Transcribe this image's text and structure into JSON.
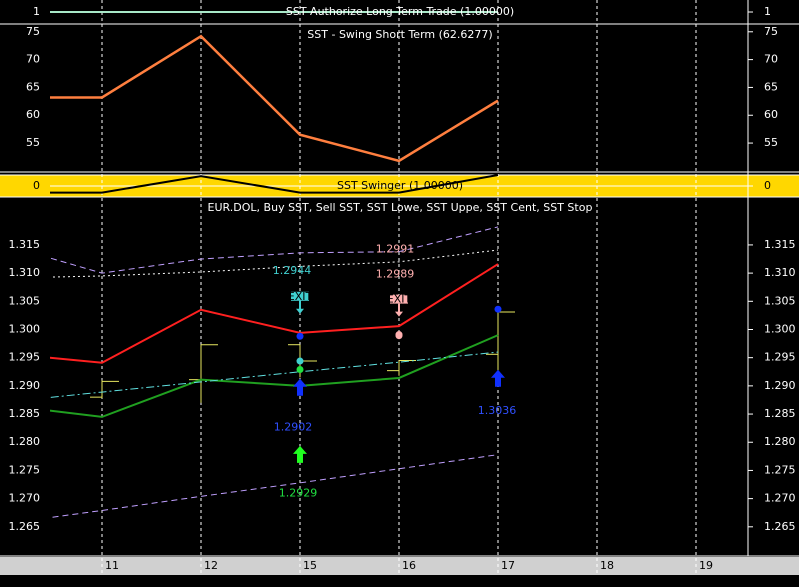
{
  "chart_data": [
    {
      "type": "line",
      "title": "SST Authorize Long Term Trade (1.00000)",
      "ylim": [
        0,
        2
      ],
      "yticks": [
        1
      ],
      "series": [
        {
          "color": "#a8e8c8",
          "style": "solid",
          "values": [
            1,
            1,
            1,
            1,
            1,
            1,
            null,
            null
          ]
        }
      ]
    },
    {
      "type": "line",
      "title": "SST - Swing Short Term (62.6277)",
      "ylim": [
        49.8,
        76.4
      ],
      "yticks": [
        75,
        70,
        65,
        60,
        55
      ],
      "series": [
        {
          "color": "#ff7f3f",
          "style": "solid",
          "values": [
            63.2,
            63.2,
            74.2,
            56.5,
            51.8,
            62.6277,
            null,
            null
          ]
        }
      ]
    },
    {
      "type": "line",
      "title": "SST Swinger (1.00000)",
      "background": "#ffd700",
      "ylim": [
        -1,
        1
      ],
      "yticks": [
        0
      ],
      "series": [
        {
          "color": "#000000",
          "style": "solid",
          "values": [
            -0.6,
            -0.6,
            0.9,
            -0.6,
            -0.6,
            1,
            null,
            null
          ]
        }
      ]
    },
    {
      "type": "ohlc",
      "title": "EUR.DOL, Buy SST, Sell SST, SST Lowe, SST Uppe, SST Cent, SST Stop",
      "categories": [
        null,
        "11",
        "12",
        "15",
        "16",
        "17",
        "18",
        "19"
      ],
      "ylim": [
        1.26,
        1.3235
      ],
      "yticks": [
        {
          "value": 1.315,
          "label": "1.315"
        },
        {
          "value": 1.31,
          "label": "1.310"
        },
        {
          "value": 1.305,
          "label": "1.305"
        },
        {
          "value": 1.3,
          "label": "1.300"
        },
        {
          "value": 1.295,
          "label": "1.295"
        },
        {
          "value": 1.29,
          "label": "1.290"
        },
        {
          "value": 1.285,
          "label": "1.285"
        },
        {
          "value": 1.28,
          "label": "1.280"
        },
        {
          "value": 1.275,
          "label": "1.275"
        },
        {
          "value": 1.27,
          "label": "1.270"
        },
        {
          "value": 1.265,
          "label": "1.265"
        }
      ],
      "ohlc": {
        "color": "#e8e860",
        "open": [
          null,
          1.288,
          1.2911,
          1.2973,
          1.2927,
          1.2956,
          null,
          null
        ],
        "high": [
          null,
          1.291,
          1.2973,
          1.2973,
          1.2945,
          1.3031,
          null,
          null
        ],
        "low": [
          null,
          1.2878,
          1.287,
          1.2915,
          1.2918,
          1.2902,
          null,
          null
        ],
        "close": [
          null,
          1.2908,
          1.2973,
          1.2944,
          1.2945,
          1.3031,
          null,
          null
        ]
      },
      "series": [
        {
          "color": "#ff2020",
          "style": "solid",
          "values": [
            1.2958,
            1.2941,
            1.3035,
            1.2994,
            1.3006,
            1.3116,
            null,
            null
          ]
        },
        {
          "color": "#20a020",
          "style": "solid",
          "values": [
            1.2866,
            1.2845,
            1.2911,
            1.29,
            1.2914,
            1.299,
            null,
            null
          ]
        },
        {
          "color": "#60e0e0",
          "style": "dashdot",
          "values": [
            1.2871,
            1.2889,
            1.2907,
            1.2925,
            1.2942,
            1.296,
            null,
            null
          ]
        },
        {
          "color": "#c0a0ff",
          "style": "dashed",
          "values": [
            1.3151,
            1.31,
            1.3125,
            1.3136,
            1.3138,
            1.3182,
            null,
            null
          ]
        },
        {
          "color": "#ffffff",
          "style": "dotted",
          "values": [
            1.3091,
            1.3095,
            1.3102,
            1.3112,
            1.312,
            1.3141,
            null,
            null
          ]
        },
        {
          "color": "#c0a0ff",
          "style": "dashed",
          "values": [
            1.2655,
            1.2679,
            1.2704,
            1.2728,
            1.2753,
            1.2778,
            null,
            null
          ]
        }
      ],
      "markers": [
        {
          "index": 3,
          "value": 1.2944,
          "color": "#40d0d0",
          "shape": "dot"
        },
        {
          "index": 3,
          "value": 1.2929,
          "color": "#20e040",
          "shape": "dot"
        },
        {
          "index": 3,
          "value": 1.2988,
          "color": "#1030ff",
          "shape": "dot"
        },
        {
          "index": 3,
          "value": 1.2902,
          "color": "#1030ff",
          "shape": "up"
        },
        {
          "index": 3,
          "value": 1.2783,
          "color": "#20ff20",
          "shape": "up"
        },
        {
          "index": 4,
          "value": 1.2991,
          "color": "#ffb0b0",
          "shape": "dot"
        },
        {
          "index": 4,
          "value": 1.2989,
          "color": "#ffb0b0",
          "shape": "dot"
        },
        {
          "index": 5,
          "value": 1.3036,
          "color": "#1030ff",
          "shape": "dot"
        },
        {
          "index": 5,
          "value": 1.2918,
          "color": "#1030ff",
          "shape": "up"
        },
        {
          "index": 3,
          "value": 1.3058,
          "color": "#40d0d0",
          "shape": "exit",
          "text": "EXIT"
        },
        {
          "index": 4,
          "value": 1.3053,
          "color": "#ffb0b0",
          "shape": "exit",
          "text": "EXIT"
        }
      ]
    }
  ]
}
